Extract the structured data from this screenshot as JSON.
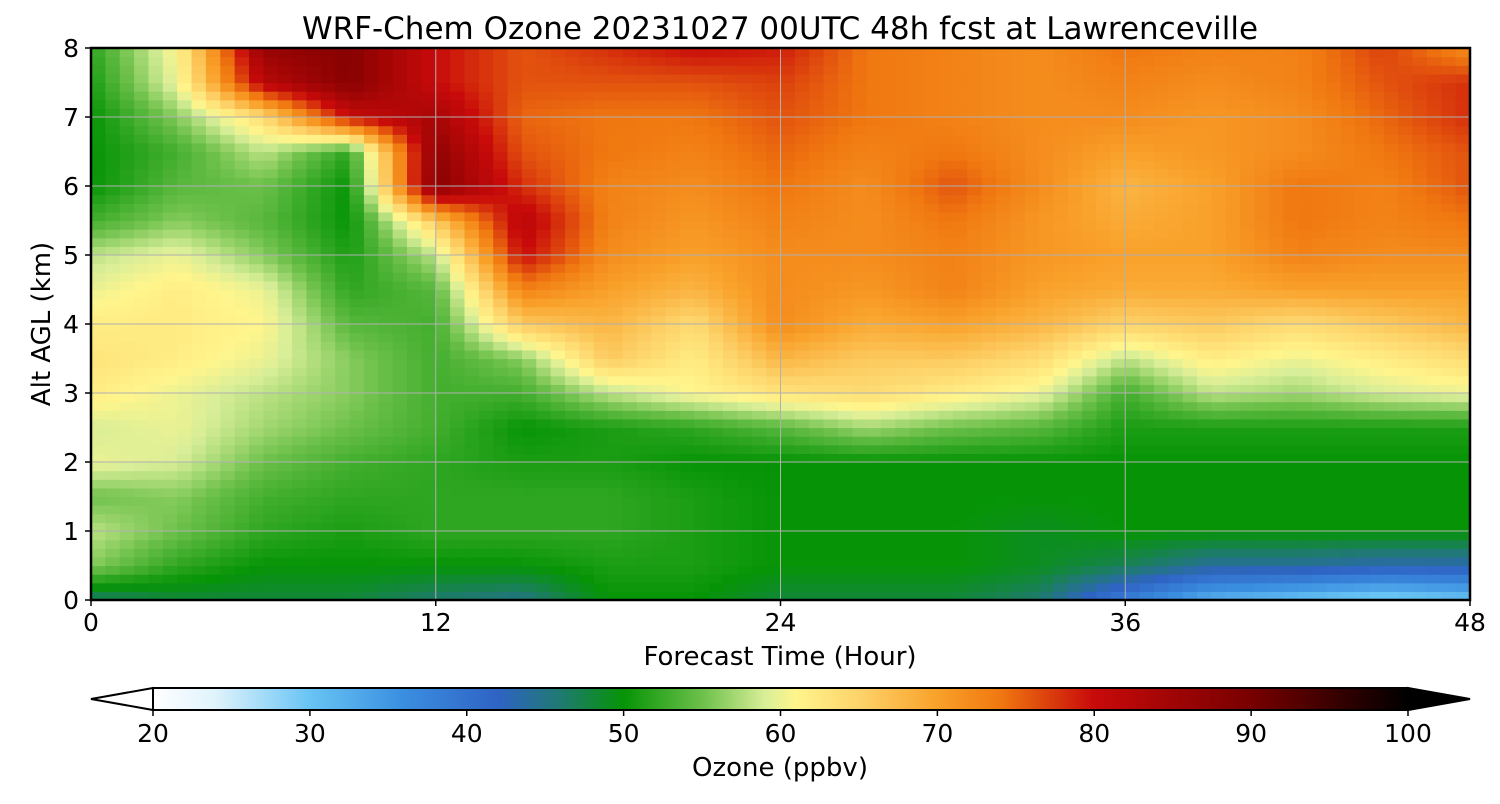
{
  "chart_data": {
    "type": "heatmap",
    "title": "WRF-Chem Ozone  20231027 00UTC 48h fcst at Lawrenceville",
    "xlabel": "Forecast Time (Hour)",
    "ylabel": "Alt AGL (km)",
    "xlim": [
      0,
      48
    ],
    "ylim": [
      0,
      8
    ],
    "x_ticks": [
      0,
      12,
      24,
      36,
      48
    ],
    "y_ticks": [
      0,
      1,
      2,
      3,
      4,
      5,
      6,
      7,
      8
    ],
    "grid": true,
    "colorbar": {
      "label": "Ozone  (ppbv)",
      "min": 20,
      "max": 100,
      "ticks": [
        20,
        30,
        40,
        50,
        60,
        70,
        80,
        90,
        100
      ],
      "extend": "both",
      "colors": [
        [
          20,
          "#ffffff"
        ],
        [
          24,
          "#dff3fc"
        ],
        [
          30,
          "#68c4f4"
        ],
        [
          36,
          "#3a8ee0"
        ],
        [
          42,
          "#2f63c4"
        ],
        [
          46,
          "#1f7a70"
        ],
        [
          50,
          "#069406"
        ],
        [
          55,
          "#6cc04a"
        ],
        [
          59,
          "#d8ee98"
        ],
        [
          61,
          "#fff58c"
        ],
        [
          65,
          "#fdd36a"
        ],
        [
          70,
          "#f9a12a"
        ],
        [
          74,
          "#f07810"
        ],
        [
          80,
          "#c80a0a"
        ],
        [
          90,
          "#780000"
        ],
        [
          100,
          "#000000"
        ]
      ]
    },
    "field": {
      "description_units": "ppbv",
      "x": [
        0,
        3,
        6,
        9,
        12,
        15,
        18,
        21,
        24,
        27,
        30,
        33,
        36,
        39,
        42,
        45,
        48
      ],
      "y": [
        0,
        0.5,
        1,
        1.5,
        2,
        2.5,
        3,
        3.5,
        4,
        4.5,
        5,
        5.5,
        6,
        6.5,
        7,
        7.5,
        8
      ],
      "z": [
        [
          46,
          48,
          48,
          48,
          46,
          45,
          50,
          50,
          48,
          48,
          48,
          46,
          38,
          32,
          30,
          28,
          30
        ],
        [
          56,
          52,
          50,
          50,
          50,
          50,
          51,
          51,
          50,
          50,
          50,
          49,
          47,
          44,
          44,
          43,
          43
        ],
        [
          58,
          55,
          52,
          51,
          52,
          52,
          52,
          51,
          50,
          50,
          50,
          49,
          50,
          50,
          50,
          50,
          50
        ],
        [
          55,
          56,
          53,
          52,
          52,
          52,
          52,
          51,
          50,
          50,
          50,
          50,
          50,
          50,
          50,
          50,
          50
        ],
        [
          60,
          59,
          55,
          53,
          52,
          51,
          51,
          50,
          50,
          50,
          50,
          50,
          50,
          50,
          50,
          50,
          50
        ],
        [
          59,
          60,
          57,
          55,
          53,
          50,
          51,
          52,
          54,
          57,
          55,
          54,
          51,
          51,
          51,
          51,
          51
        ],
        [
          62,
          60,
          58,
          56,
          53,
          53,
          58,
          61,
          63,
          64,
          62,
          60,
          53,
          58,
          57,
          59,
          60
        ],
        [
          63,
          62,
          60,
          56,
          53,
          56,
          66,
          62,
          68,
          66,
          66,
          64,
          58,
          62,
          60,
          62,
          64
        ],
        [
          62,
          62,
          61,
          54,
          53,
          66,
          68,
          64,
          72,
          69,
          70,
          68,
          65,
          66,
          64,
          66,
          68
        ],
        [
          60,
          62,
          60,
          52,
          54,
          73,
          70,
          68,
          72,
          71,
          73,
          70,
          69,
          69,
          70,
          70,
          70
        ],
        [
          58,
          60,
          56,
          51,
          58,
          80,
          72,
          70,
          72,
          72,
          73,
          71,
          70,
          70,
          73,
          72,
          72
        ],
        [
          53,
          56,
          54,
          50,
          66,
          82,
          73,
          71,
          73,
          72,
          74,
          71,
          69,
          70,
          74,
          73,
          74
        ],
        [
          50,
          54,
          55,
          50,
          88,
          78,
          73,
          72,
          74,
          72,
          76,
          72,
          68,
          70,
          74,
          73,
          76
        ],
        [
          50,
          53,
          58,
          52,
          87,
          76,
          74,
          73,
          75,
          73,
          74,
          72,
          70,
          71,
          72,
          74,
          76
        ],
        [
          50,
          56,
          64,
          80,
          84,
          75,
          74,
          74,
          76,
          74,
          73,
          72,
          72,
          71,
          72,
          75,
          78
        ],
        [
          51,
          60,
          82,
          88,
          80,
          76,
          76,
          76,
          77,
          74,
          73,
          72,
          73,
          72,
          73,
          76,
          78
        ],
        [
          52,
          61,
          86,
          88,
          80,
          76,
          78,
          80,
          79,
          74,
          73,
          72,
          74,
          73,
          73,
          77,
          72
        ]
      ]
    }
  }
}
